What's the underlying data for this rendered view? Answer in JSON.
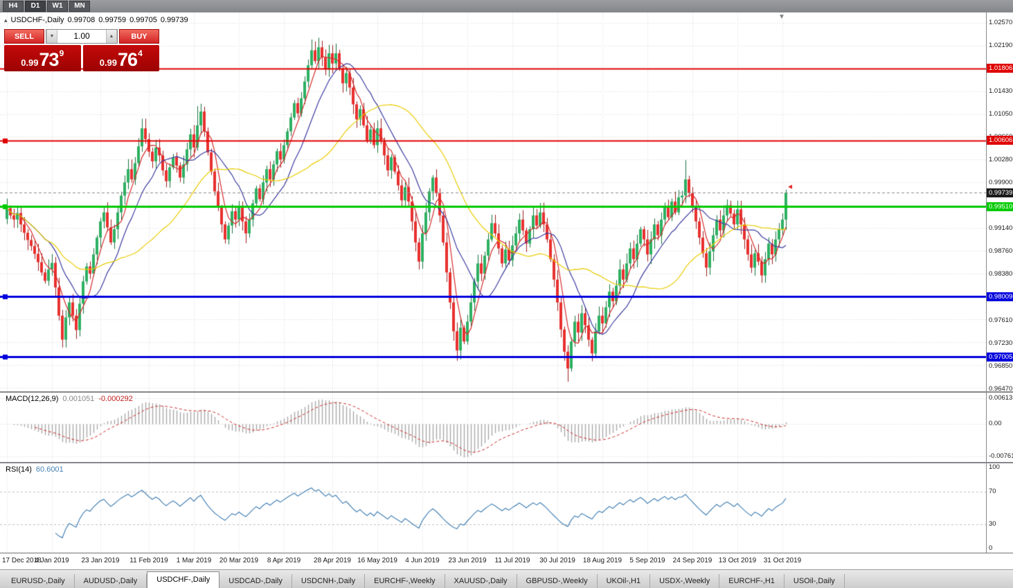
{
  "toolbar": {
    "timeframes": [
      {
        "label": "H4",
        "active": false
      },
      {
        "label": "D1",
        "active": true
      },
      {
        "label": "W1",
        "active": false
      },
      {
        "label": "MN",
        "active": false
      }
    ]
  },
  "chart_header": {
    "panel_toggle_icon": "▴",
    "bar_marker_icon": "▼",
    "symbol_title": "USDCHF-,Daily",
    "open": "0.99708",
    "high": "0.99759",
    "low": "0.99705",
    "close": "0.99739"
  },
  "trade_panel": {
    "sell_label": "SELL",
    "buy_label": "BUY",
    "volume_value": "1.00",
    "volume_down_icon": "▼",
    "volume_up_icon": "▲",
    "sell_price": {
      "prefix": "0.99",
      "big": "73",
      "sup": "9"
    },
    "buy_price": {
      "prefix": "0.99",
      "big": "76",
      "sup": "4"
    }
  },
  "price_axis": {
    "ticks": [
      {
        "label": "1.02570",
        "price": 1.0257
      },
      {
        "label": "1.02190",
        "price": 1.0219
      },
      {
        "label": "1.01430",
        "price": 1.0143
      },
      {
        "label": "1.01050",
        "price": 1.0105
      },
      {
        "label": "1.00660",
        "price": 1.0066
      },
      {
        "label": "1.00280",
        "price": 1.0028
      },
      {
        "label": "0.99900",
        "price": 0.999
      },
      {
        "label": "0.99140",
        "price": 0.9914
      },
      {
        "label": "0.98760",
        "price": 0.9876
      },
      {
        "label": "0.98380",
        "price": 0.9838
      },
      {
        "label": "0.97610",
        "price": 0.9761
      },
      {
        "label": "0.97230",
        "price": 0.9723
      },
      {
        "label": "0.96850",
        "price": 0.9685
      },
      {
        "label": "0.96470",
        "price": 0.9647
      }
    ],
    "lines": [
      {
        "label": "1.01806",
        "price": 1.01806,
        "color": "#df0000",
        "width": 2,
        "handles": false
      },
      {
        "label": "1.00606",
        "price": 1.00606,
        "color": "#df0000",
        "width": 2,
        "handles": true
      },
      {
        "label": "0.99510",
        "price": 0.9951,
        "color": "#00cb00",
        "width": 3,
        "handles": true
      },
      {
        "label": "0.98009",
        "price": 0.98009,
        "color": "#0000dc",
        "width": 3,
        "handles": true
      },
      {
        "label": "0.97005",
        "price": 0.97005,
        "color": "#0000dc",
        "width": 3,
        "handles": true
      }
    ],
    "current_price": {
      "label": "0.99739",
      "price": 0.99739,
      "box_color": "#1b1b1b"
    }
  },
  "macd_panel": {
    "title": "MACD(12,26,9)",
    "main_value": "0.001051",
    "signal_value": "-0.000292",
    "axis_labels": [
      {
        "label": "0.00613",
        "value": 0.00613
      },
      {
        "label": "0.00",
        "value": 0
      },
      {
        "label": "-0.00761",
        "value": -0.00761
      }
    ]
  },
  "rsi_panel": {
    "title": "RSI(14)",
    "value": "60.6001",
    "axis_labels": [
      {
        "label": "100",
        "value": 100
      },
      {
        "label": "70",
        "value": 70
      },
      {
        "label": "30",
        "value": 30
      },
      {
        "label": "0",
        "value": 0
      }
    ]
  },
  "date_axis": [
    {
      "label": "17 Dec 2018",
      "index": 0
    },
    {
      "label": "4 Jan 2019",
      "index": 13
    },
    {
      "label": "23 Jan 2019",
      "index": 27
    },
    {
      "label": "11 Feb 2019",
      "index": 41
    },
    {
      "label": "1 Mar 2019",
      "index": 54
    },
    {
      "label": "20 Mar 2019",
      "index": 67
    },
    {
      "label": "8 Apr 2019",
      "index": 80
    },
    {
      "label": "28 Apr 2019",
      "index": 94
    },
    {
      "label": "16 May 2019",
      "index": 107
    },
    {
      "label": "4 Jun 2019",
      "index": 120
    },
    {
      "label": "23 Jun 2019",
      "index": 133
    },
    {
      "label": "11 Jul 2019",
      "index": 146
    },
    {
      "label": "30 Jul 2019",
      "index": 159
    },
    {
      "label": "18 Aug 2019",
      "index": 172
    },
    {
      "label": "5 Sep 2019",
      "index": 185
    },
    {
      "label": "24 Sep 2019",
      "index": 198
    },
    {
      "label": "13 Oct 2019",
      "index": 211
    },
    {
      "label": "31 Oct 2019",
      "index": 224
    }
  ],
  "tabs": [
    {
      "label": "EURUSD-,Daily",
      "active": false
    },
    {
      "label": "AUDUSD-,Daily",
      "active": false
    },
    {
      "label": "USDCHF-,Daily",
      "active": true
    },
    {
      "label": "USDCAD-,Daily",
      "active": false
    },
    {
      "label": "USDCNH-,Daily",
      "active": false
    },
    {
      "label": "EURCHF-,Weekly",
      "active": false
    },
    {
      "label": "XAUUSD-,Daily",
      "active": false
    },
    {
      "label": "GBPUSD-,Weekly",
      "active": false
    },
    {
      "label": "UKOil-,H1",
      "active": false
    },
    {
      "label": "USDX-,Weekly",
      "active": false
    },
    {
      "label": "EURCHF-,H1",
      "active": false
    },
    {
      "label": "USOil-,Daily",
      "active": false
    }
  ],
  "chart_data": {
    "type": "candlestick",
    "symbol": "USDCHF-",
    "timeframe": "Daily",
    "ohlc_display": {
      "open": 0.99708,
      "high": 0.99759,
      "low": 0.99705,
      "close": 0.99739
    },
    "y_max": 1.0274,
    "y_min": 0.9643,
    "first_open": 0.993,
    "closes": [
      0.9948,
      0.9936,
      0.9929,
      0.994,
      0.9921,
      0.9907,
      0.9895,
      0.9885,
      0.9872,
      0.9858,
      0.9841,
      0.9827,
      0.9846,
      0.9857,
      0.9816,
      0.9769,
      0.9729,
      0.9766,
      0.9791,
      0.9769,
      0.9745,
      0.9789,
      0.9826,
      0.9851,
      0.9839,
      0.9871,
      0.9899,
      0.9926,
      0.9941,
      0.9916,
      0.9891,
      0.9913,
      0.9941,
      0.9969,
      0.9991,
      1.0013,
      0.9996,
      1.0023,
      1.0051,
      1.0081,
      1.0063,
      1.0042,
      1.0026,
      1.0049,
      1.0036,
      1.0011,
      0.9993,
      1.0016,
      1.0033,
      1.0019,
      0.9999,
      1.0021,
      1.0046,
      1.0071,
      1.0049,
      1.0086,
      1.0109,
      1.0076,
      1.0041,
      1.0009,
      0.9976,
      0.9949,
      0.9921,
      0.9896,
      0.9919,
      0.9943,
      0.9929,
      0.9951,
      0.9926,
      0.9906,
      0.9929,
      0.9956,
      0.9981,
      0.9963,
      0.9991,
      1.0013,
      0.9996,
      1.0021,
      1.0043,
      1.0029,
      1.0053,
      1.0076,
      1.0099,
      1.0123,
      1.0106,
      1.0131,
      1.0159,
      1.0186,
      1.0211,
      1.0193,
      1.0216,
      1.0199,
      1.0179,
      1.0206,
      1.0189,
      1.0206,
      1.0181,
      1.0156,
      1.0173,
      1.0149,
      1.0121,
      1.0096,
      1.0113,
      1.0086,
      1.0061,
      1.0079,
      1.0053,
      1.0081,
      1.0059,
      1.0036,
      1.0011,
      1.0033,
      1.0009,
      0.9986,
      0.9961,
      0.9983,
      0.9959,
      0.9926,
      0.9891,
      0.9859,
      0.9906,
      0.9941,
      0.9976,
      0.9999,
      0.9973,
      0.9936,
      0.9891,
      0.9841,
      0.9791,
      0.9743,
      0.9711,
      0.9749,
      0.9726,
      0.9759,
      0.9791,
      0.9826,
      0.9856,
      0.9839,
      0.9869,
      0.9896,
      0.9923,
      0.9906,
      0.9881,
      0.9856,
      0.9879,
      0.9861,
      0.9886,
      0.9906,
      0.9929,
      0.9911,
      0.9889,
      0.9913,
      0.9936,
      0.9919,
      0.9941,
      0.9921,
      0.9896,
      0.9863,
      0.9829,
      0.9791,
      0.9746,
      0.9709,
      0.9681,
      0.9726,
      0.9759,
      0.9741,
      0.9773,
      0.9753,
      0.9729,
      0.9706,
      0.9743,
      0.9769,
      0.9756,
      0.9783,
      0.9809,
      0.9793,
      0.9819,
      0.9846,
      0.9829,
      0.9856,
      0.9881,
      0.9863,
      0.9889,
      0.9913,
      0.9896,
      0.9871,
      0.9896,
      0.9921,
      0.9903,
      0.9929,
      0.9951,
      0.9933,
      0.9959,
      0.9941,
      0.9966,
      0.9969,
      0.9996,
      0.9973,
      0.9951,
      0.9926,
      0.9899,
      0.9873,
      0.9849,
      0.9876,
      0.9903,
      0.9929,
      0.9911,
      0.9936,
      0.9953,
      0.9939,
      0.9921,
      0.9946,
      0.9921,
      0.9896,
      0.9871,
      0.9849,
      0.9873,
      0.9859,
      0.9836,
      0.9863,
      0.9889,
      0.9871,
      0.9896,
      0.9913,
      0.9929,
      0.9974
    ],
    "wick_overrides": {
      "16": {
        "low": 0.9716
      },
      "39": {
        "high": 1.0097
      },
      "55": {
        "high": 1.0118
      },
      "56": {
        "high": 1.0122
      },
      "88": {
        "high": 1.0229
      },
      "90": {
        "high": 1.0232
      },
      "119": {
        "low": 0.9846
      },
      "130": {
        "low": 0.9694
      },
      "162": {
        "low": 0.9659
      },
      "169": {
        "low": 0.9693
      },
      "196": {
        "high": 1.0028
      },
      "225": {
        "high": 0.9976
      }
    },
    "candle_colors": {
      "up_fill": "#2eb062",
      "up_stroke": "#17713d",
      "down_fill": "#e8312f",
      "down_stroke": "#9e1b1b"
    },
    "moving_averages": [
      {
        "period": 5,
        "color": "#d42a2a"
      },
      {
        "period": 13,
        "color": "#3a3a9e"
      },
      {
        "period": 34,
        "color": "#e8cc00"
      }
    ],
    "grid_color": "#d6d6d6",
    "current_line_color": "#8a8a8a",
    "macd": {
      "fast": 12,
      "slow": 26,
      "signal": 9,
      "max": 0.00613,
      "min": -0.00761,
      "histogram_color": "#a8a8a8",
      "signal_color": "#cc2a2a"
    },
    "rsi": {
      "period": 14,
      "color": "#4682B4",
      "levels": [
        70,
        30
      ],
      "level_color": "#bfbfbf"
    },
    "last_bar_marker_color": "#e02020"
  }
}
